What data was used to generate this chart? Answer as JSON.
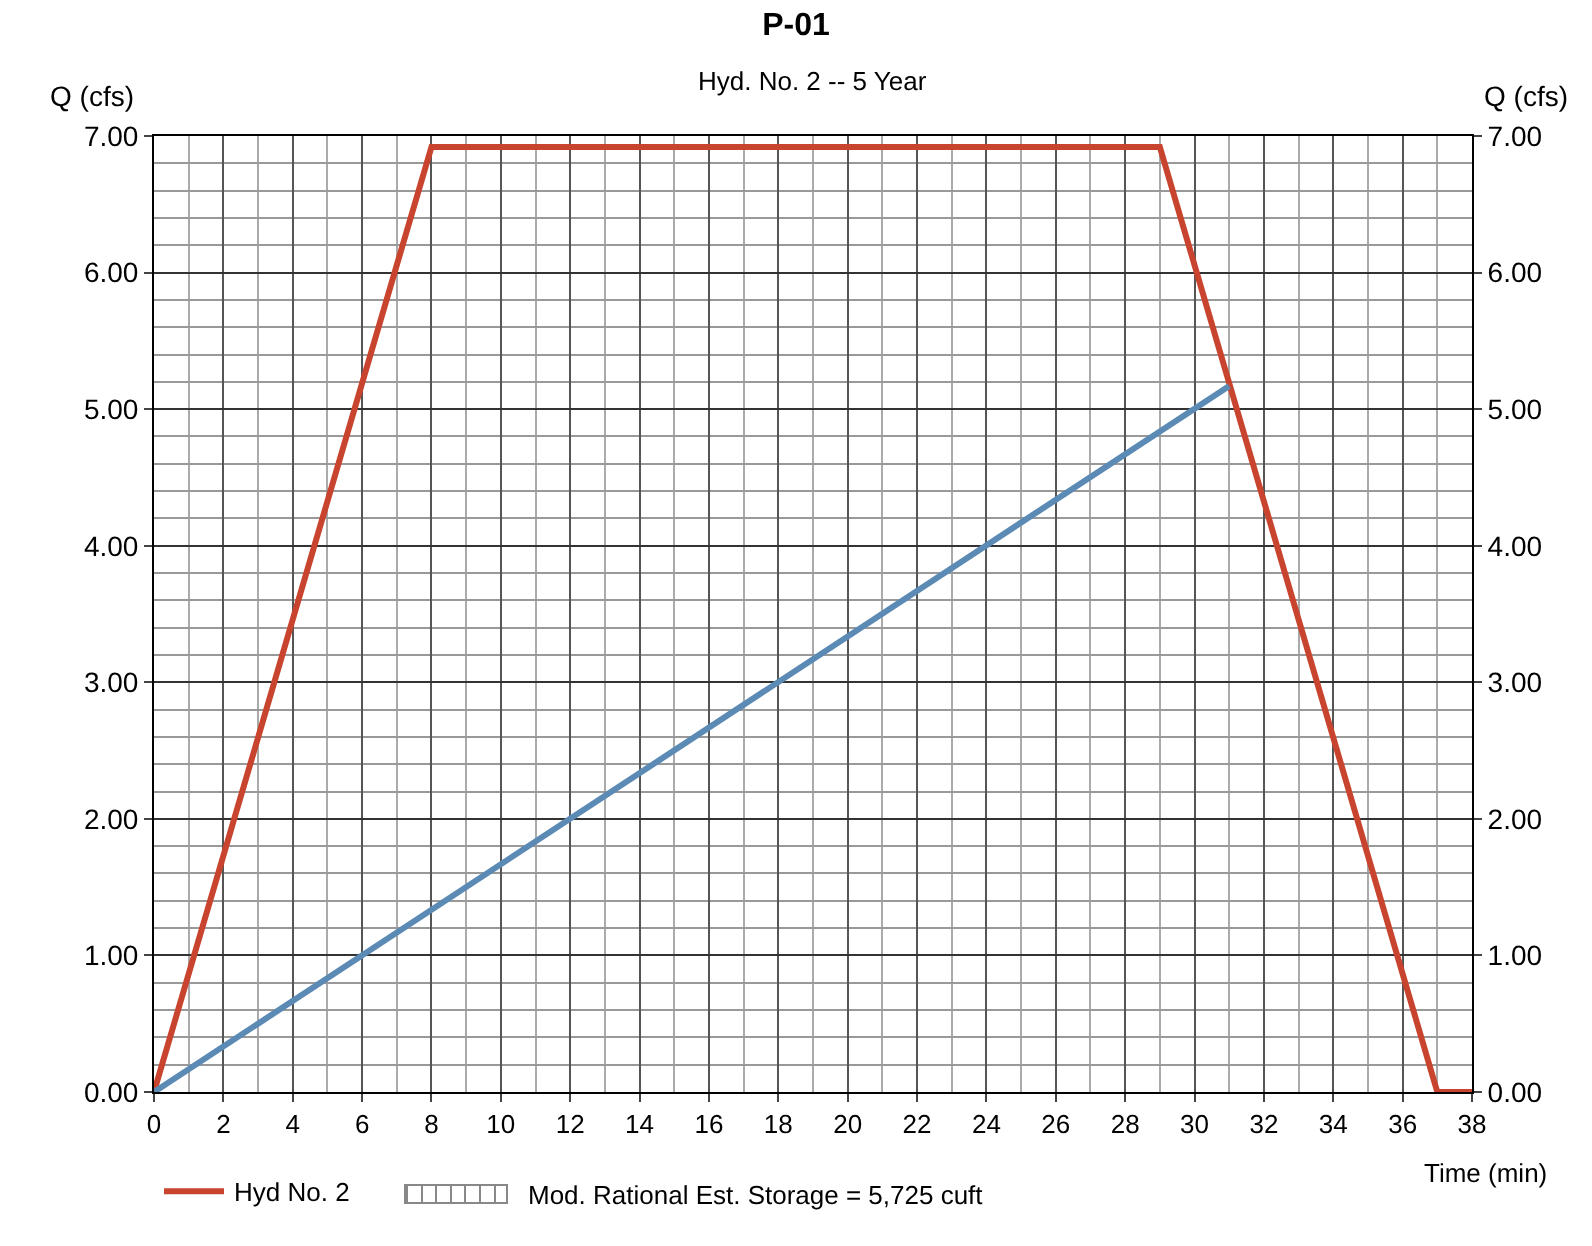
{
  "chart_data": {
    "type": "line",
    "title": "P-01",
    "subtitle": "Hyd. No. 2 -- 5 Year",
    "xlabel": "Time (min)",
    "ylabel": "Q (cfs)",
    "y2label": "Q (cfs)",
    "series": [
      {
        "name": "Hyd No. 2",
        "color": "#c8442e",
        "x": [
          0,
          8,
          29,
          37,
          38
        ],
        "values": [
          0,
          6.92,
          6.92,
          0,
          0
        ]
      },
      {
        "color": "#5b8ab5",
        "x": [
          0,
          31
        ],
        "values": [
          0,
          5.17
        ]
      }
    ],
    "annotations": [
      "Mod. Rational Est. Storage = 5,725 cuft"
    ],
    "xlim": [
      0,
      38
    ],
    "xticks": [
      0,
      2,
      4,
      6,
      8,
      10,
      12,
      14,
      16,
      18,
      20,
      22,
      24,
      26,
      28,
      30,
      32,
      34,
      36,
      38
    ],
    "ylim": [
      0,
      7
    ],
    "yticks": [
      {
        "value": 0,
        "label": "0.00"
      },
      {
        "value": 1,
        "label": "1.00"
      },
      {
        "value": 2,
        "label": "2.00"
      },
      {
        "value": 3,
        "label": "3.00"
      },
      {
        "value": 4,
        "label": "4.00"
      },
      {
        "value": 5,
        "label": "5.00"
      },
      {
        "value": 6,
        "label": "6.00"
      },
      {
        "value": 7,
        "label": "7.00"
      }
    ],
    "y2lim": [
      0,
      7
    ],
    "y2ticks": [
      {
        "value": 0,
        "label": "0.00"
      },
      {
        "value": 1,
        "label": "1.00"
      },
      {
        "value": 2,
        "label": "2.00"
      },
      {
        "value": 3,
        "label": "3.00"
      },
      {
        "value": 4,
        "label": "4.00"
      },
      {
        "value": 5,
        "label": "5.00"
      },
      {
        "value": 6,
        "label": "6.00"
      },
      {
        "value": 7,
        "label": "7.00"
      }
    ],
    "grid": true,
    "legend": "bottom left",
    "line_style": "solid",
    "marker": "none"
  }
}
